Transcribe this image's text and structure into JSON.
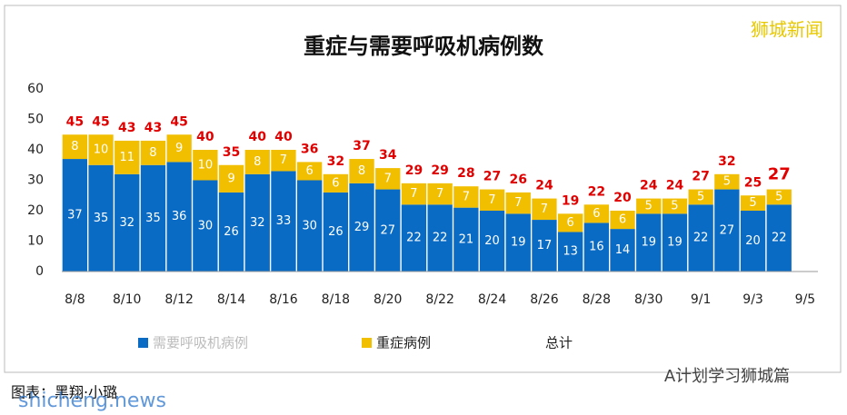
{
  "chart_data": {
    "type": "stacked_bar",
    "title": "重症与需要呼吸机病例数",
    "categories": [
      "8/8",
      null,
      "8/10",
      null,
      "8/12",
      null,
      "8/14",
      null,
      "8/16",
      null,
      "8/18",
      null,
      "8/20",
      null,
      "8/22",
      null,
      "8/24",
      null,
      "8/26",
      null,
      "8/28",
      null,
      "8/30",
      null,
      "9/1",
      null,
      "9/3",
      null,
      "9/5"
    ],
    "series": [
      {
        "name": "需要呼吸机病例",
        "color": "#0a6bc4",
        "values": [
          37,
          35,
          32,
          35,
          36,
          30,
          26,
          32,
          33,
          30,
          26,
          29,
          27,
          22,
          22,
          21,
          20,
          19,
          17,
          13,
          16,
          14,
          19,
          19,
          22,
          27,
          20,
          22,
          null
        ]
      },
      {
        "name": "重症病例",
        "color": "#f2be00",
        "values": [
          8,
          10,
          11,
          8,
          9,
          10,
          9,
          8,
          7,
          6,
          6,
          8,
          7,
          7,
          7,
          7,
          7,
          7,
          7,
          6,
          6,
          6,
          5,
          5,
          5,
          5,
          5,
          5,
          null
        ]
      }
    ],
    "totals_name": "总计",
    "totals": [
      45,
      45,
      43,
      43,
      45,
      40,
      35,
      40,
      40,
      36,
      32,
      37,
      34,
      29,
      29,
      28,
      27,
      26,
      24,
      19,
      22,
      20,
      24,
      24,
      27,
      32,
      25,
      27,
      null
    ],
    "totals_color": "#e00000",
    "ylim": [
      0,
      60
    ],
    "yticks": [
      0,
      10,
      20,
      30,
      40,
      50,
      60
    ],
    "grid": false,
    "annotations": [
      "狮城新闻",
      "图表：黑翔·小璐",
      "A计划学习狮城篇",
      "shicheng.news"
    ]
  }
}
